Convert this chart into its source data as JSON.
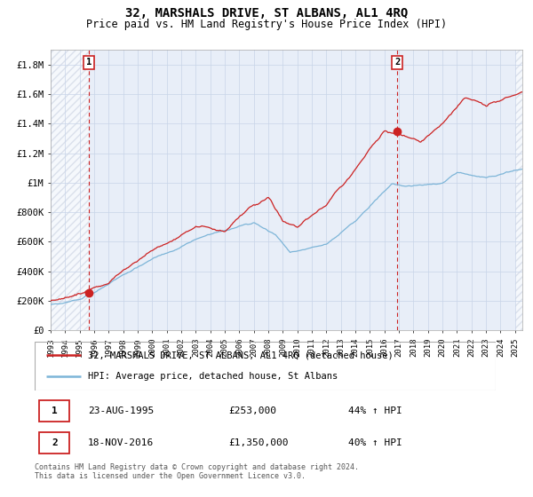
{
  "title": "32, MARSHALS DRIVE, ST ALBANS, AL1 4RQ",
  "subtitle": "Price paid vs. HM Land Registry's House Price Index (HPI)",
  "ylim": [
    0,
    1900000
  ],
  "xlim_start": 1993.0,
  "xlim_end": 2025.5,
  "yticks": [
    0,
    200000,
    400000,
    600000,
    800000,
    1000000,
    1200000,
    1400000,
    1600000,
    1800000
  ],
  "ytick_labels": [
    "£0",
    "£200K",
    "£400K",
    "£600K",
    "£800K",
    "£1M",
    "£1.2M",
    "£1.4M",
    "£1.6M",
    "£1.8M"
  ],
  "sale1_date": 1995.64,
  "sale1_price": 253000,
  "sale1_label": "1",
  "sale2_date": 2016.88,
  "sale2_price": 1350000,
  "sale2_label": "2",
  "hpi_line_color": "#7db5d8",
  "price_line_color": "#cc2222",
  "grid_color": "#c8d4e8",
  "background_color": "#e8eef8",
  "hatch_color": "#c8d0e0",
  "legend1_text": "32, MARSHALS DRIVE, ST ALBANS, AL1 4RQ (detached house)",
  "legend2_text": "HPI: Average price, detached house, St Albans",
  "note1_label": "1",
  "note1_date": "23-AUG-1995",
  "note1_price": "£253,000",
  "note1_hpi": "44% ↑ HPI",
  "note2_label": "2",
  "note2_date": "18-NOV-2016",
  "note2_price": "£1,350,000",
  "note2_hpi": "40% ↑ HPI",
  "footer": "Contains HM Land Registry data © Crown copyright and database right 2024.\nThis data is licensed under the Open Government Licence v3.0."
}
